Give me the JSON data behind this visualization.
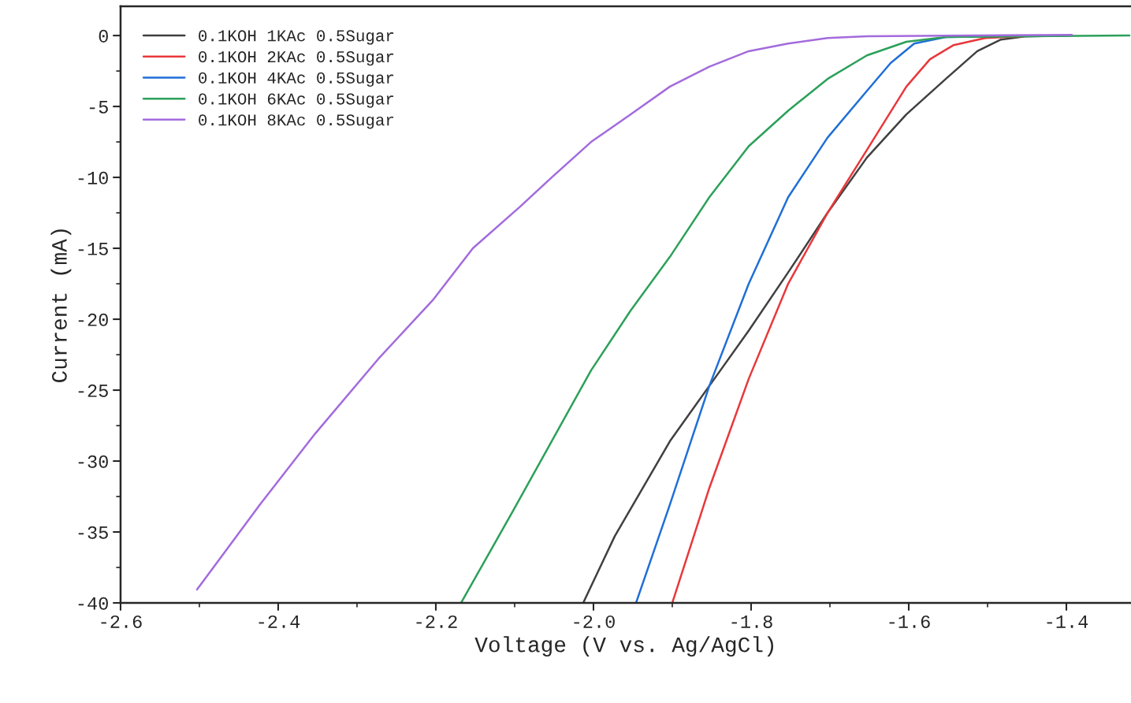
{
  "chart_data": {
    "type": "line",
    "xlabel": "Voltage (V vs. Ag/AgCl)",
    "ylabel": "Current (mA)",
    "xlim": [
      -2.6,
      -1.318
    ],
    "ylim": [
      -40,
      2.06
    ],
    "xticks": [
      -2.6,
      -2.4,
      -2.2,
      {
        "value": -2.0,
        "label": "-2.0"
      },
      -1.8,
      -1.6,
      -1.4
    ],
    "yticks": [
      0,
      -5,
      -10,
      -15,
      -20,
      -25,
      -30,
      -35,
      -40
    ],
    "grid": false,
    "legend": "top left",
    "marker": "none",
    "line_style": "solid",
    "series": [
      {
        "name": "0.1KOH 1KAc 0.5Sugar",
        "color": "#404040",
        "x": [
          -2.013,
          -1.973,
          -1.903,
          -1.853,
          -1.803,
          -1.753,
          -1.703,
          -1.653,
          -1.603,
          -1.553,
          -1.513,
          -1.483,
          -1.453,
          -1.393
        ],
        "values": [
          -40,
          -35.3,
          -28.6,
          -24.7,
          -20.8,
          -16.7,
          -12.5,
          -8.6,
          -5.56,
          -3.06,
          -1.1,
          -0.28,
          -0.06,
          0
        ]
      },
      {
        "name": "0.1KOH 2KAc 0.5Sugar",
        "color": "#e8383b",
        "x": [
          -1.9,
          -1.853,
          -1.803,
          -1.753,
          -1.703,
          -1.653,
          -1.603,
          -1.573,
          -1.543,
          -1.503,
          -1.453
        ],
        "values": [
          -40,
          -31.9,
          -24.2,
          -17.5,
          -12.5,
          -8.06,
          -3.6,
          -1.67,
          -0.67,
          -0.17,
          -0.05
        ]
      },
      {
        "name": "0.1KOH 4KAc 0.5Sugar",
        "color": "#1f6fd6",
        "x": [
          -1.946,
          -1.903,
          -1.853,
          -1.803,
          -1.753,
          -1.703,
          -1.653,
          -1.623,
          -1.593,
          -1.553,
          -1.403
        ],
        "values": [
          -40,
          -33.06,
          -24.7,
          -17.5,
          -11.4,
          -7.2,
          -3.9,
          -1.94,
          -0.56,
          -0.1,
          0
        ]
      },
      {
        "name": "0.1KOH 6KAc 0.5Sugar",
        "color": "#2ca05a",
        "x": [
          -2.168,
          -2.103,
          -2.053,
          -2.003,
          -1.953,
          -1.903,
          -1.853,
          -1.803,
          -1.753,
          -1.703,
          -1.653,
          -1.603,
          -1.553,
          -1.32
        ],
        "values": [
          -40,
          -33.6,
          -28.6,
          -23.6,
          -19.4,
          -15.6,
          -11.4,
          -7.8,
          -5.3,
          -3.06,
          -1.4,
          -0.44,
          -0.1,
          0
        ]
      },
      {
        "name": "0.1KOH 8KAc 0.5Sugar",
        "color": "#a36bdd",
        "x": [
          -2.503,
          -2.423,
          -2.353,
          -2.273,
          -2.203,
          -2.153,
          -2.093,
          -2.053,
          -2.003,
          -1.953,
          -1.903,
          -1.853,
          -1.803,
          -1.753,
          -1.703,
          -1.653,
          -1.393
        ],
        "values": [
          -39.06,
          -33.06,
          -28.06,
          -22.8,
          -18.6,
          -15,
          -12.06,
          -10,
          -7.5,
          -5.56,
          -3.6,
          -2.2,
          -1.1,
          -0.56,
          -0.17,
          -0.05,
          0.05
        ]
      }
    ]
  }
}
